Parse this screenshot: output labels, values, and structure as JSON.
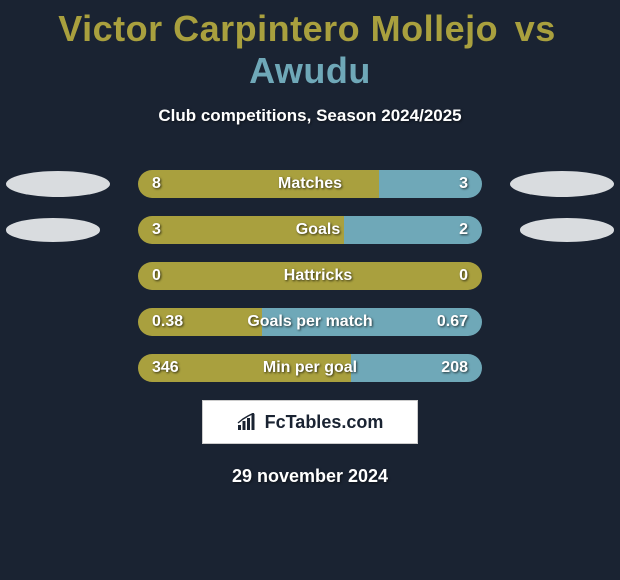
{
  "title": {
    "player1": "Victor Carpintero Mollejo",
    "vs": "vs",
    "player2": "Awudu",
    "player1_color": "#a9a03e",
    "player2_color": "#6fa8b8"
  },
  "subtitle": "Club competitions, Season 2024/2025",
  "avatars": {
    "left_bg": "#d9dcdf",
    "right_bg": "#d9dcdf"
  },
  "bar_defaults": {
    "left_color": "#a9a03e",
    "right_color": "#6fa8b8",
    "container_width": 344,
    "radius": 14
  },
  "rows": [
    {
      "metric": "Matches",
      "left_val": "8",
      "right_val": "3",
      "left_pct": 70,
      "right_pct": 30,
      "show_avatars": true,
      "label_center_offset": 0
    },
    {
      "metric": "Goals",
      "left_val": "3",
      "right_val": "2",
      "left_pct": 60,
      "right_pct": 40,
      "show_avatars": true,
      "avatar_scale": 0.9,
      "label_center_offset": 8
    },
    {
      "metric": "Hattricks",
      "left_val": "0",
      "right_val": "0",
      "left_pct": 100,
      "right_pct": 0,
      "show_avatars": false,
      "label_center_offset": 8
    },
    {
      "metric": "Goals per match",
      "left_val": "0.38",
      "right_val": "0.67",
      "left_pct": 36,
      "right_pct": 64,
      "show_avatars": false,
      "label_center_offset": 0
    },
    {
      "metric": "Min per goal",
      "left_val": "346",
      "right_val": "208",
      "left_pct": 62,
      "right_pct": 38,
      "show_avatars": false,
      "label_center_offset": 0
    }
  ],
  "branding": {
    "text": "FcTables.com",
    "text_color": "#1a2332",
    "bg": "#ffffff"
  },
  "date": "29 november 2024",
  "background_color": "#1a2332"
}
